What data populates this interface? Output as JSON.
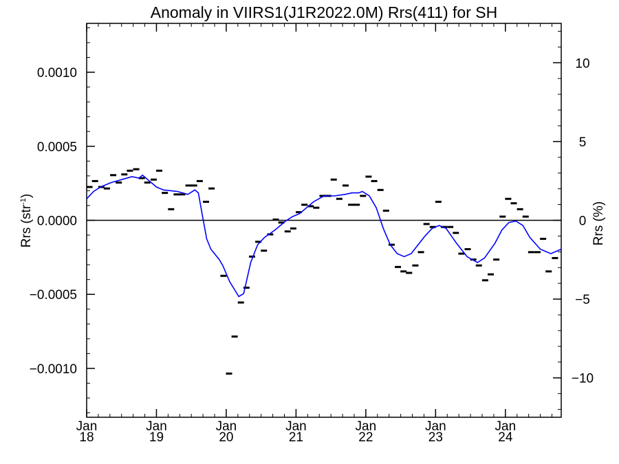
{
  "chart_data": {
    "type": "line",
    "title": "Anomaly in VIIRS1(J1R2022.0M) Rrs(411) for SH",
    "ylabel_left_base": "Rrs (str",
    "ylabel_left_sup": "-1",
    "ylabel_left_end": ")",
    "ylabel_right": "Rrs (%)",
    "xlim": [
      2018.0,
      2024.8
    ],
    "ylim_left": [
      -0.00133,
      0.00133
    ],
    "ylim_right": [
      -12.5,
      12.5
    ],
    "x_ticks": [
      {
        "x": 2018.0,
        "month": "Jan",
        "year": "18"
      },
      {
        "x": 2019.0,
        "month": "Jan",
        "year": "19"
      },
      {
        "x": 2020.0,
        "month": "Jan",
        "year": "20"
      },
      {
        "x": 2021.0,
        "month": "Jan",
        "year": "21"
      },
      {
        "x": 2022.0,
        "month": "Jan",
        "year": "22"
      },
      {
        "x": 2023.0,
        "month": "Jan",
        "year": "23"
      },
      {
        "x": 2024.0,
        "month": "Jan",
        "year": "24"
      }
    ],
    "y_ticks_left": [
      {
        "v": 0.001,
        "label": "0.0010"
      },
      {
        "v": 0.0005,
        "label": "0.0005"
      },
      {
        "v": 0.0,
        "label": "0.0000"
      },
      {
        "v": -0.0005,
        "label": "−0.0005"
      },
      {
        "v": -0.001,
        "label": "−0.0010"
      }
    ],
    "y_ticks_right": [
      {
        "v": 10,
        "label": "10"
      },
      {
        "v": 5,
        "label": "5"
      },
      {
        "v": 0,
        "label": "0"
      },
      {
        "v": -5,
        "label": "−5"
      },
      {
        "v": -10,
        "label": "−10"
      }
    ],
    "reference_line_y": 0.0,
    "series": [
      {
        "kind": "markers",
        "points": [
          [
            2018.04,
            0.000225
          ],
          [
            2018.12,
            0.000265
          ],
          [
            2018.21,
            0.000225
          ],
          [
            2018.29,
            0.000215
          ],
          [
            2018.38,
            0.000305
          ],
          [
            2018.46,
            0.000255
          ],
          [
            2018.54,
            0.00031
          ],
          [
            2018.62,
            0.000335
          ],
          [
            2018.71,
            0.000345
          ],
          [
            2018.79,
            0.000285
          ],
          [
            2018.87,
            0.000255
          ],
          [
            2018.96,
            0.000275
          ],
          [
            2019.04,
            0.000335
          ],
          [
            2019.12,
            0.000185
          ],
          [
            2019.21,
            7.5e-05
          ],
          [
            2019.29,
            0.000175
          ],
          [
            2019.37,
            0.000175
          ],
          [
            2019.46,
            0.000235
          ],
          [
            2019.54,
            0.000235
          ],
          [
            2019.62,
            0.000265
          ],
          [
            2019.71,
            0.000125
          ],
          [
            2019.79,
            0.000215
          ],
          [
            2019.96,
            -0.000375
          ],
          [
            2020.04,
            -0.001035
          ],
          [
            2020.12,
            -0.000785
          ],
          [
            2020.21,
            -0.000555
          ],
          [
            2020.29,
            -0.000455
          ],
          [
            2020.37,
            -0.000245
          ],
          [
            2020.46,
            -0.000145
          ],
          [
            2020.54,
            -0.000205
          ],
          [
            2020.63,
            -9.5e-05
          ],
          [
            2020.71,
            5e-06
          ],
          [
            2020.79,
            -1.5e-05
          ],
          [
            2020.88,
            -7.5e-05
          ],
          [
            2020.96,
            -5.5e-05
          ],
          [
            2021.04,
            5.5e-05
          ],
          [
            2021.12,
            0.000105
          ],
          [
            2021.21,
            9.5e-05
          ],
          [
            2021.29,
            8.5e-05
          ],
          [
            2021.38,
            0.000165
          ],
          [
            2021.46,
            0.000165
          ],
          [
            2021.54,
            0.000275
          ],
          [
            2021.62,
            0.000145
          ],
          [
            2021.71,
            0.000235
          ],
          [
            2021.79,
            0.000105
          ],
          [
            2021.87,
            0.000105
          ],
          [
            2021.96,
            0.000165
          ],
          [
            2022.04,
            0.000295
          ],
          [
            2022.12,
            0.000265
          ],
          [
            2022.21,
            0.000205
          ],
          [
            2022.29,
            6.5e-05
          ],
          [
            2022.37,
            -0.000165
          ],
          [
            2022.46,
            -0.000315
          ],
          [
            2022.54,
            -0.000345
          ],
          [
            2022.62,
            -0.000355
          ],
          [
            2022.71,
            -0.000305
          ],
          [
            2022.79,
            -0.000215
          ],
          [
            2022.87,
            -2.5e-05
          ],
          [
            2022.96,
            -4.5e-05
          ],
          [
            2023.04,
            0.000125
          ],
          [
            2023.12,
            -4.5e-05
          ],
          [
            2023.21,
            -4.5e-05
          ],
          [
            2023.29,
            -8.5e-05
          ],
          [
            2023.37,
            -0.000225
          ],
          [
            2023.46,
            -0.000195
          ],
          [
            2023.54,
            -0.000265
          ],
          [
            2023.62,
            -0.000305
          ],
          [
            2023.71,
            -0.000405
          ],
          [
            2023.79,
            -0.000365
          ],
          [
            2023.87,
            -0.000265
          ],
          [
            2023.96,
            2.5e-05
          ],
          [
            2024.04,
            0.000145
          ],
          [
            2024.12,
            0.000115
          ],
          [
            2024.21,
            7.5e-05
          ],
          [
            2024.29,
            2.5e-05
          ],
          [
            2024.37,
            -0.000215
          ],
          [
            2024.46,
            -0.000215
          ],
          [
            2024.54,
            -0.000125
          ],
          [
            2024.62,
            -0.000345
          ],
          [
            2024.71,
            -0.000255
          ]
        ]
      },
      {
        "kind": "line",
        "color": "#0000ff",
        "points": [
          [
            2018.0,
            0.000145
          ],
          [
            2018.1,
            0.000195
          ],
          [
            2018.2,
            0.000225
          ],
          [
            2018.35,
            0.000255
          ],
          [
            2018.5,
            0.000275
          ],
          [
            2018.65,
            0.000295
          ],
          [
            2018.75,
            0.000285
          ],
          [
            2018.8,
            0.000305
          ],
          [
            2018.9,
            0.000265
          ],
          [
            2019.0,
            0.000225
          ],
          [
            2019.1,
            0.000205
          ],
          [
            2019.3,
            0.000195
          ],
          [
            2019.45,
            0.000175
          ],
          [
            2019.55,
            0.000205
          ],
          [
            2019.6,
            0.000185
          ],
          [
            2019.65,
            5.5e-05
          ],
          [
            2019.72,
            -0.000125
          ],
          [
            2019.78,
            -0.000195
          ],
          [
            2019.9,
            -0.000265
          ],
          [
            2019.95,
            -0.000305
          ],
          [
            2020.05,
            -0.000415
          ],
          [
            2020.18,
            -0.000515
          ],
          [
            2020.25,
            -0.000495
          ],
          [
            2020.35,
            -0.000285
          ],
          [
            2020.45,
            -0.000165
          ],
          [
            2020.55,
            -0.000115
          ],
          [
            2020.7,
            -6.5e-05
          ],
          [
            2020.85,
            -5e-06
          ],
          [
            2020.95,
            2.5e-05
          ],
          [
            2021.05,
            4.5e-05
          ],
          [
            2021.25,
            0.000125
          ],
          [
            2021.4,
            0.000165
          ],
          [
            2021.55,
            0.000165
          ],
          [
            2021.7,
            0.000175
          ],
          [
            2021.8,
            0.000185
          ],
          [
            2021.9,
            0.000185
          ],
          [
            2021.95,
            0.000195
          ],
          [
            2022.05,
            0.000165
          ],
          [
            2022.15,
            8.5e-05
          ],
          [
            2022.25,
            -5.5e-05
          ],
          [
            2022.35,
            -0.000165
          ],
          [
            2022.45,
            -0.000225
          ],
          [
            2022.55,
            -0.000245
          ],
          [
            2022.65,
            -0.000225
          ],
          [
            2022.75,
            -0.000165
          ],
          [
            2022.85,
            -0.000105
          ],
          [
            2022.95,
            -5.5e-05
          ],
          [
            2023.05,
            -3.5e-05
          ],
          [
            2023.15,
            -5.5e-05
          ],
          [
            2023.3,
            -0.000155
          ],
          [
            2023.45,
            -0.000245
          ],
          [
            2023.6,
            -0.000285
          ],
          [
            2023.7,
            -0.000255
          ],
          [
            2023.85,
            -0.000155
          ],
          [
            2023.95,
            -6.5e-05
          ],
          [
            2024.05,
            -1.5e-05
          ],
          [
            2024.15,
            -5e-06
          ],
          [
            2024.25,
            -3.5e-05
          ],
          [
            2024.35,
            -0.000115
          ],
          [
            2024.5,
            -0.000195
          ],
          [
            2024.65,
            -0.000225
          ],
          [
            2024.8,
            -0.000195
          ]
        ]
      }
    ]
  }
}
